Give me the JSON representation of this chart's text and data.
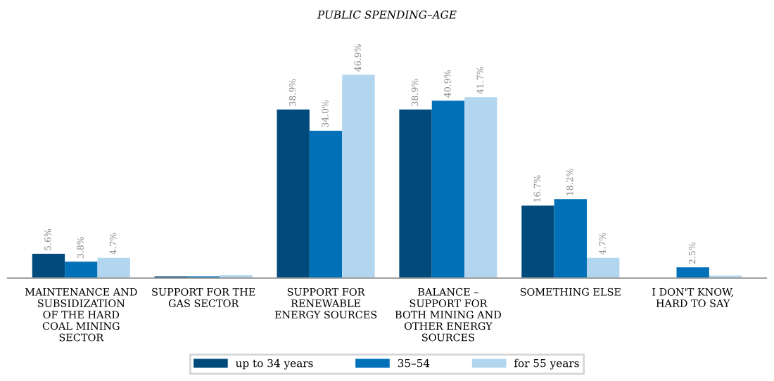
{
  "chart_data": {
    "type": "bar",
    "title": "PUBLIC SPENDING–AGE",
    "categories": [
      "MAINTENANCE AND SUBSIDIZATION OF THE HARD COAL MINING SECTOR",
      "SUPPORT FOR THE GAS SECTOR",
      "SUPPORT FOR RENEWABLE ENERGY SOURCES",
      "BALANCE – SUPPORT FOR BOTH MINING AND OTHER ENERGY SOURCES",
      "SOMETHING ELSE",
      "I DON'T KNOW, HARD TO SAY"
    ],
    "series": [
      {
        "name": "up to 34 years",
        "color": "#004b7c",
        "values": [
          5.6,
          0.4,
          38.9,
          38.9,
          16.7,
          0
        ],
        "value_labels": [
          "5.6%",
          null,
          "38.9%",
          "38.9%",
          "16.7%",
          null
        ]
      },
      {
        "name": "35–54",
        "color": "#0071b9",
        "values": [
          3.8,
          0.4,
          34.0,
          40.9,
          18.2,
          2.5
        ],
        "value_labels": [
          "3.8%",
          null,
          "34.0%",
          "40.9%",
          "18.2%",
          "2.5%"
        ]
      },
      {
        "name": "for 55 years",
        "color": "#b3d6f0",
        "values": [
          4.7,
          0.7,
          46.9,
          41.7,
          4.7,
          0.6
        ],
        "value_labels": [
          "4.7%",
          null,
          "46.9%",
          "41.7%",
          "4.7%",
          null
        ]
      }
    ],
    "legend": "bottom",
    "grid": false
  }
}
